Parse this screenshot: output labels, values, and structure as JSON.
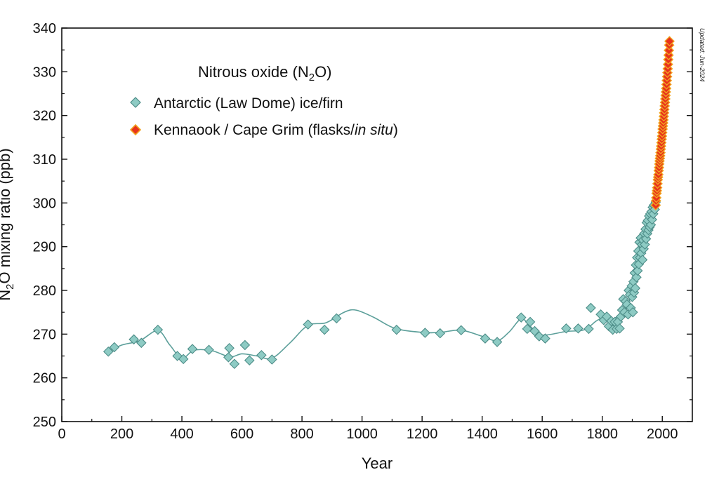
{
  "chart_data": {
    "type": "scatter",
    "title": "Nitrous oxide (N2O)",
    "title_parts": {
      "main": "Nitrous oxide (N",
      "sub": "2",
      "tail": "O)"
    },
    "xlabel": "Year",
    "ylabel": "N2O mixing ratio (ppb)",
    "ylabel_parts": {
      "main": "N",
      "sub": "2",
      "tail": "O mixing ratio (ppb)"
    },
    "xlim": [
      0,
      2100
    ],
    "ylim": [
      250,
      340
    ],
    "xticks": [
      0,
      200,
      400,
      600,
      800,
      1000,
      1200,
      1400,
      1600,
      1800,
      2000
    ],
    "yticks": [
      250,
      260,
      270,
      280,
      290,
      300,
      310,
      320,
      330,
      340
    ],
    "grid": false,
    "legend_position": "top-left",
    "updated_note": "Updated: Jun-2024",
    "series": [
      {
        "name": "Antarctic (Law Dome) ice/firn",
        "color": "#8ecbc4",
        "marker": "diamond",
        "points": [
          [
            155,
            266
          ],
          [
            175,
            267
          ],
          [
            240,
            268.8
          ],
          [
            265,
            268
          ],
          [
            320,
            271
          ],
          [
            385,
            265
          ],
          [
            405,
            264.3
          ],
          [
            435,
            266.6
          ],
          [
            490,
            266.4
          ],
          [
            555,
            264.7
          ],
          [
            558,
            266.8
          ],
          [
            575,
            263.2
          ],
          [
            610,
            267.5
          ],
          [
            625,
            264
          ],
          [
            665,
            265.2
          ],
          [
            700,
            264.2
          ],
          [
            820,
            272.2
          ],
          [
            875,
            271
          ],
          [
            915,
            273.6
          ],
          [
            1115,
            271
          ],
          [
            1210,
            270.3
          ],
          [
            1260,
            270.2
          ],
          [
            1330,
            270.9
          ],
          [
            1410,
            269
          ],
          [
            1450,
            268.2
          ],
          [
            1530,
            273.8
          ],
          [
            1550,
            271.2
          ],
          [
            1560,
            272.8
          ],
          [
            1575,
            270.7
          ],
          [
            1590,
            269.5
          ],
          [
            1610,
            269
          ],
          [
            1680,
            271.3
          ],
          [
            1720,
            271.3
          ],
          [
            1755,
            271.2
          ],
          [
            1762,
            276
          ],
          [
            1795,
            274.5
          ],
          [
            1805,
            273.2
          ],
          [
            1815,
            274
          ],
          [
            1822,
            271.8
          ],
          [
            1830,
            273
          ],
          [
            1835,
            271
          ],
          [
            1842,
            272.8
          ],
          [
            1848,
            271.2
          ],
          [
            1852,
            272.8
          ],
          [
            1858,
            271.3
          ],
          [
            1862,
            274
          ],
          [
            1866,
            275.5
          ],
          [
            1870,
            278
          ],
          [
            1874,
            275
          ],
          [
            1878,
            277.5
          ],
          [
            1882,
            276.8
          ],
          [
            1886,
            274.5
          ],
          [
            1888,
            280
          ],
          [
            1892,
            279
          ],
          [
            1895,
            276
          ],
          [
            1898,
            281
          ],
          [
            1900,
            278.5
          ],
          [
            1902,
            275
          ],
          [
            1904,
            282
          ],
          [
            1906,
            279.5
          ],
          [
            1908,
            284
          ],
          [
            1910,
            280.5
          ],
          [
            1912,
            285.8
          ],
          [
            1914,
            283
          ],
          [
            1916,
            287.5
          ],
          [
            1918,
            284.5
          ],
          [
            1920,
            289
          ],
          [
            1922,
            286
          ],
          [
            1924,
            291
          ],
          [
            1926,
            287.5
          ],
          [
            1928,
            292
          ],
          [
            1930,
            288.5
          ],
          [
            1932,
            290.5
          ],
          [
            1934,
            287
          ],
          [
            1936,
            291.5
          ],
          [
            1938,
            289.5
          ],
          [
            1940,
            293
          ],
          [
            1942,
            290.5
          ],
          [
            1944,
            294
          ],
          [
            1946,
            291.8
          ],
          [
            1948,
            295.5
          ],
          [
            1950,
            293
          ],
          [
            1952,
            296
          ],
          [
            1954,
            293.8
          ],
          [
            1956,
            297
          ],
          [
            1958,
            294.5
          ],
          [
            1960,
            297.5
          ],
          [
            1962,
            295
          ],
          [
            1964,
            298
          ],
          [
            1966,
            296.2
          ],
          [
            1968,
            299
          ],
          [
            1970,
            297.5
          ],
          [
            1972,
            299.5
          ],
          [
            1975,
            298.5
          ],
          [
            1978,
            300.2
          ]
        ]
      },
      {
        "name": "Kennaook / Cape Grim (flasks/in situ)",
        "name_parts": {
          "main": "Kennaook / Cape Grim (flasks/",
          "italic": "in situ",
          "tail": ")"
        },
        "color": "#e8331c",
        "edge_color": "#f2a21e",
        "marker": "diamond",
        "points": [
          [
            1978,
            299.5
          ],
          [
            1979,
            300.5
          ],
          [
            1980,
            301.2
          ],
          [
            1981,
            302.2
          ],
          [
            1982,
            302.8
          ],
          [
            1983,
            303.5
          ],
          [
            1984,
            304.4
          ],
          [
            1985,
            305.3
          ],
          [
            1986,
            305.9
          ],
          [
            1987,
            306.5
          ],
          [
            1988,
            307.4
          ],
          [
            1989,
            308.1
          ],
          [
            1990,
            308.9
          ],
          [
            1991,
            309.6
          ],
          [
            1992,
            310.2
          ],
          [
            1993,
            310.8
          ],
          [
            1994,
            311.5
          ],
          [
            1995,
            312.3
          ],
          [
            1996,
            313
          ],
          [
            1997,
            313.8
          ],
          [
            1998,
            314.6
          ],
          [
            1999,
            315.3
          ],
          [
            2000,
            316.1
          ],
          [
            2001,
            316.9
          ],
          [
            2002,
            317.6
          ],
          [
            2003,
            318.3
          ],
          [
            2004,
            319
          ],
          [
            2005,
            319.8
          ],
          [
            2006,
            320.6
          ],
          [
            2007,
            321.4
          ],
          [
            2008,
            322.2
          ],
          [
            2009,
            323
          ],
          [
            2010,
            323.8
          ],
          [
            2011,
            324.6
          ],
          [
            2012,
            325.4
          ],
          [
            2013,
            326.2
          ],
          [
            2014,
            327.1
          ],
          [
            2015,
            328
          ],
          [
            2016,
            328.9
          ],
          [
            2017,
            329.8
          ],
          [
            2018,
            330.7
          ],
          [
            2019,
            331.7
          ],
          [
            2020,
            332.8
          ],
          [
            2021,
            333.8
          ],
          [
            2022,
            334.9
          ],
          [
            2023,
            336.1
          ],
          [
            2024,
            337
          ]
        ]
      }
    ],
    "smooth_fit": {
      "color": "#5c9f9a",
      "points": [
        [
          155,
          266
        ],
        [
          200,
          267.5
        ],
        [
          260,
          268.5
        ],
        [
          320,
          270.8
        ],
        [
          360,
          267.5
        ],
        [
          400,
          264.5
        ],
        [
          440,
          266.3
        ],
        [
          500,
          266.2
        ],
        [
          560,
          264.8
        ],
        [
          600,
          265.5
        ],
        [
          650,
          265
        ],
        [
          700,
          264.5
        ],
        [
          760,
          268
        ],
        [
          820,
          272
        ],
        [
          880,
          272.6
        ],
        [
          940,
          275
        ],
        [
          980,
          275.5
        ],
        [
          1040,
          273.8
        ],
        [
          1110,
          271.3
        ],
        [
          1200,
          270.4
        ],
        [
          1260,
          270.4
        ],
        [
          1330,
          270.9
        ],
        [
          1400,
          269.5
        ],
        [
          1450,
          268.5
        ],
        [
          1490,
          270.5
        ],
        [
          1530,
          273.5
        ],
        [
          1560,
          271.8
        ],
        [
          1600,
          269.8
        ],
        [
          1680,
          270.6
        ],
        [
          1740,
          271
        ],
        [
          1780,
          273
        ],
        [
          1800,
          273.6
        ],
        [
          1830,
          273.4
        ],
        [
          1860,
          274.5
        ],
        [
          1880,
          276.3
        ],
        [
          1900,
          279.5
        ],
        [
          1920,
          285
        ],
        [
          1940,
          290.8
        ],
        [
          1960,
          296
        ],
        [
          1975,
          299.8
        ],
        [
          1990,
          308
        ],
        [
          2000,
          314
        ],
        [
          2010,
          321.5
        ],
        [
          2020,
          332
        ],
        [
          2024,
          337
        ]
      ]
    }
  }
}
